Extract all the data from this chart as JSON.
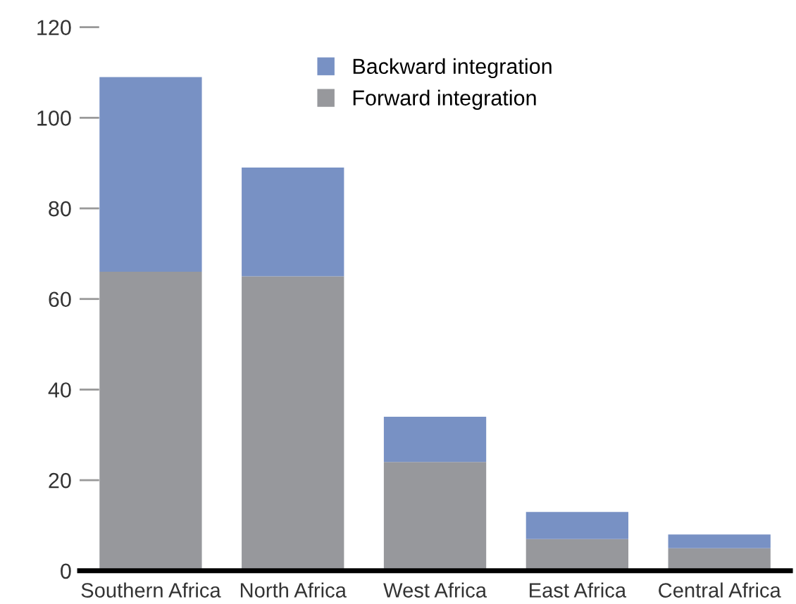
{
  "chart_data": {
    "type": "bar",
    "stacked": true,
    "categories": [
      "Southern Africa",
      "North Africa",
      "West Africa",
      "East Africa",
      "Central Africa"
    ],
    "series": [
      {
        "name": "Forward integration",
        "color": "#97989c",
        "values": [
          66,
          65,
          24,
          7,
          5
        ]
      },
      {
        "name": "Backward integration",
        "color": "#7891c4",
        "values": [
          43,
          24,
          10,
          6,
          3
        ]
      }
    ],
    "ylim": [
      0,
      120
    ],
    "yticks": [
      0,
      20,
      40,
      60,
      80,
      100,
      120
    ],
    "grid": false,
    "legend": "top"
  }
}
